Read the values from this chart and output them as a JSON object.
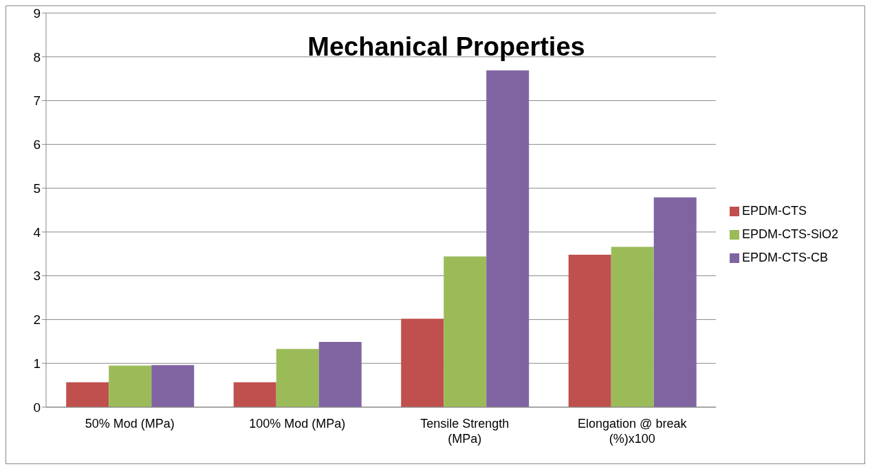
{
  "chart_data": {
    "type": "bar",
    "title": "Mechanical Properties",
    "categories": [
      "50% Mod (MPa)",
      "100% Mod (MPa)",
      "Tensile Strength (MPa)",
      "Elongation @ break (%)x100"
    ],
    "series": [
      {
        "name": "EPDM-CTS",
        "color": "#c0504d",
        "values": [
          0.57,
          0.57,
          2.02,
          3.48
        ]
      },
      {
        "name": "EPDM-CTS-SiO2",
        "color": "#9bbb59",
        "values": [
          0.95,
          1.33,
          3.44,
          3.66
        ]
      },
      {
        "name": "EPDM-CTS-CB",
        "color": "#8064a2",
        "values": [
          0.96,
          1.49,
          7.69,
          4.79
        ]
      }
    ],
    "ylim": [
      0,
      9
    ],
    "yticks": [
      0,
      1,
      2,
      3,
      4,
      5,
      6,
      7,
      8,
      9
    ],
    "grid": "y",
    "legend": "right"
  }
}
